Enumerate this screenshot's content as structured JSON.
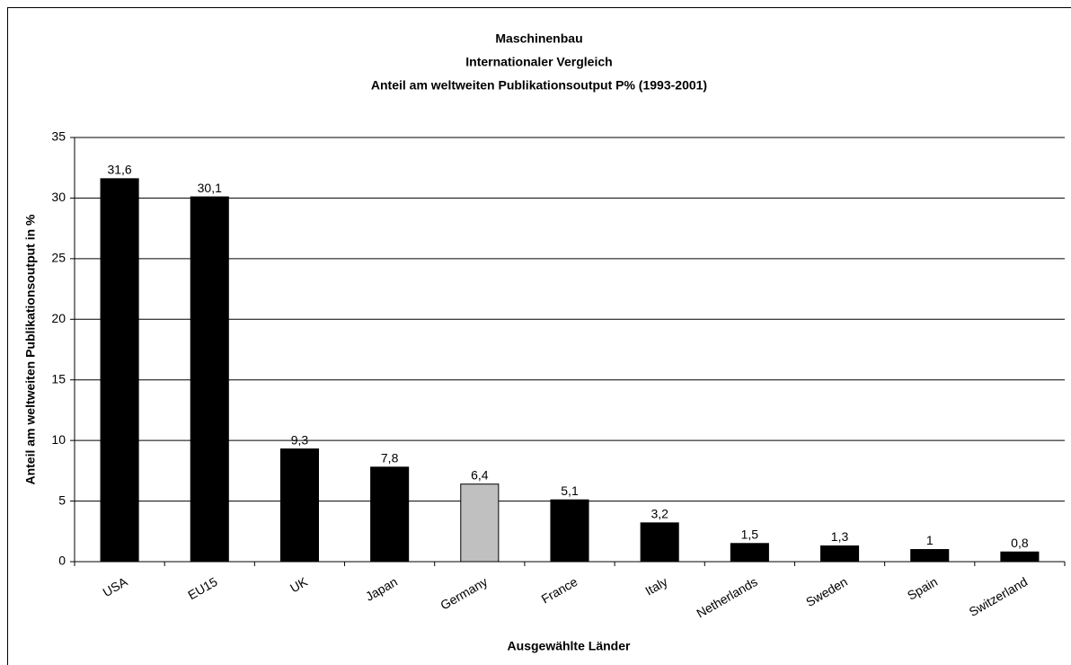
{
  "chart_data": {
    "type": "bar",
    "title": [
      "Maschinenbau",
      "Internationaler Vergleich",
      "Anteil am weltweiten Publikationsoutput P% (1993-2001)"
    ],
    "x_label": "Ausgewählte Länder",
    "y_label": "Anteil am weltweiten Publikationsoutput in %",
    "categories": [
      "USA",
      "EU15",
      "UK",
      "Japan",
      "Germany",
      "France",
      "Italy",
      "Netherlands",
      "Sweden",
      "Spain",
      "Switzerland"
    ],
    "values": [
      31.6,
      30.1,
      9.3,
      7.8,
      6.4,
      5.1,
      3.2,
      1.5,
      1.3,
      1,
      0.8
    ],
    "value_labels": [
      "31,6",
      "30,1",
      "9,3",
      "7,8",
      "6,4",
      "5,1",
      "3,2",
      "1,5",
      "1,3",
      "1",
      "0,8"
    ],
    "colors": [
      "#000000",
      "#000000",
      "#000000",
      "#000000",
      "#c0c0c0",
      "#000000",
      "#000000",
      "#000000",
      "#000000",
      "#000000",
      "#000000"
    ],
    "ylim": [
      0,
      35
    ],
    "yticks": [
      0,
      5,
      10,
      15,
      20,
      25,
      30,
      35
    ],
    "grid": true
  }
}
